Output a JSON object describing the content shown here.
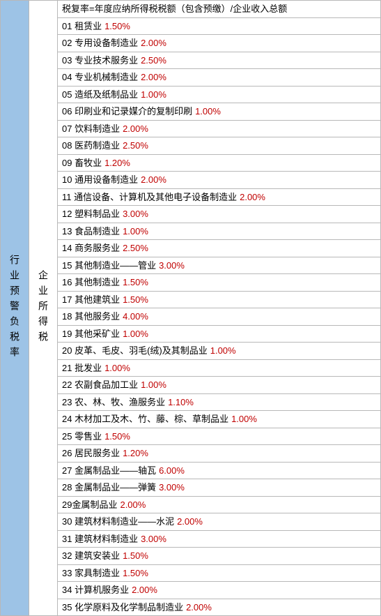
{
  "leftHeader": "行业预警负税率",
  "midHeader": "企业所得税",
  "formula": "税复率=年度应纳所得税税额（包含预缴）/企业收入总额",
  "colors": {
    "leftBg": "#9dc3e6",
    "rateColor": "#c00000",
    "borderColor": "#b8b8b8",
    "textColor": "#000000"
  },
  "rows": [
    {
      "num": "01",
      "name": "租赁业",
      "rate": "1.50%"
    },
    {
      "num": "02",
      "name": "专用设备制造业",
      "rate": "2.00%"
    },
    {
      "num": "03",
      "name": "专业技术服务业",
      "rate": "2.50%"
    },
    {
      "num": "04",
      "name": "专业机械制造业",
      "rate": "2.00%"
    },
    {
      "num": "05",
      "name": "造纸及纸制品业",
      "rate": "1.00%"
    },
    {
      "num": "06",
      "name": "印刷业和记录媒介的复制印刷",
      "rate": "1.00%"
    },
    {
      "num": "07",
      "name": "饮料制造业",
      "rate": "2.00%"
    },
    {
      "num": "08",
      "name": "医药制造业",
      "rate": "2.50%"
    },
    {
      "num": "09",
      "name": "畜牧业",
      "rate": "1.20%"
    },
    {
      "num": "10",
      "name": "通用设备制造业",
      "rate": "2.00%"
    },
    {
      "num": "11",
      "name": "通信设备、计算机及其他电子设备制造业",
      "rate": "2.00%"
    },
    {
      "num": "12",
      "name": "塑料制品业",
      "rate": "3.00%"
    },
    {
      "num": "13",
      "name": "食品制造业",
      "rate": "1.00%"
    },
    {
      "num": "14",
      "name": "商务服务业",
      "rate": "2.50%"
    },
    {
      "num": "15",
      "name": "其他制造业——管业",
      "rate": "3.00%"
    },
    {
      "num": "16",
      "name": "其他制造业",
      "rate": "1.50%"
    },
    {
      "num": "17",
      "name": "其他建筑业",
      "rate": "1.50%"
    },
    {
      "num": "18",
      "name": "其他服务业",
      "rate": "4.00%"
    },
    {
      "num": "19",
      "name": "其他采矿业",
      "rate": "1.00%"
    },
    {
      "num": "20",
      "name": "皮革、毛皮、羽毛(绒)及其制品业",
      "rate": "1.00%"
    },
    {
      "num": "21",
      "name": "批发业",
      "rate": "1.00%"
    },
    {
      "num": "22",
      "name": "农副食品加工业",
      "rate": "1.00%"
    },
    {
      "num": "23",
      "name": "农、林、牧、渔服务业",
      "rate": "1.10%"
    },
    {
      "num": "24",
      "name": "木材加工及木、竹、藤、棕、草制品业",
      "rate": "1.00%"
    },
    {
      "num": "25",
      "name": "零售业",
      "rate": "1.50%"
    },
    {
      "num": "26",
      "name": "居民服务业",
      "rate": "1.20%"
    },
    {
      "num": "27",
      "name": "金属制品业——轴瓦",
      "rate": "6.00%"
    },
    {
      "num": "28",
      "name": "金属制品业——弹簧",
      "rate": "3.00%"
    },
    {
      "num": "29",
      "name": "金属制品业",
      "rate": "2.00%",
      "nospace": true
    },
    {
      "num": "30",
      "name": "建筑材料制造业——水泥",
      "rate": "2.00%"
    },
    {
      "num": "31",
      "name": "建筑材料制造业",
      "rate": "3.00%"
    },
    {
      "num": "32",
      "name": "建筑安装业",
      "rate": "1.50%"
    },
    {
      "num": "33",
      "name": "家具制造业",
      "rate": "1.50%"
    },
    {
      "num": "34",
      "name": "计算机服务业",
      "rate": "2.00%"
    },
    {
      "num": "35",
      "name": "化学原料及化学制品制造业",
      "rate": "2.00%"
    }
  ]
}
